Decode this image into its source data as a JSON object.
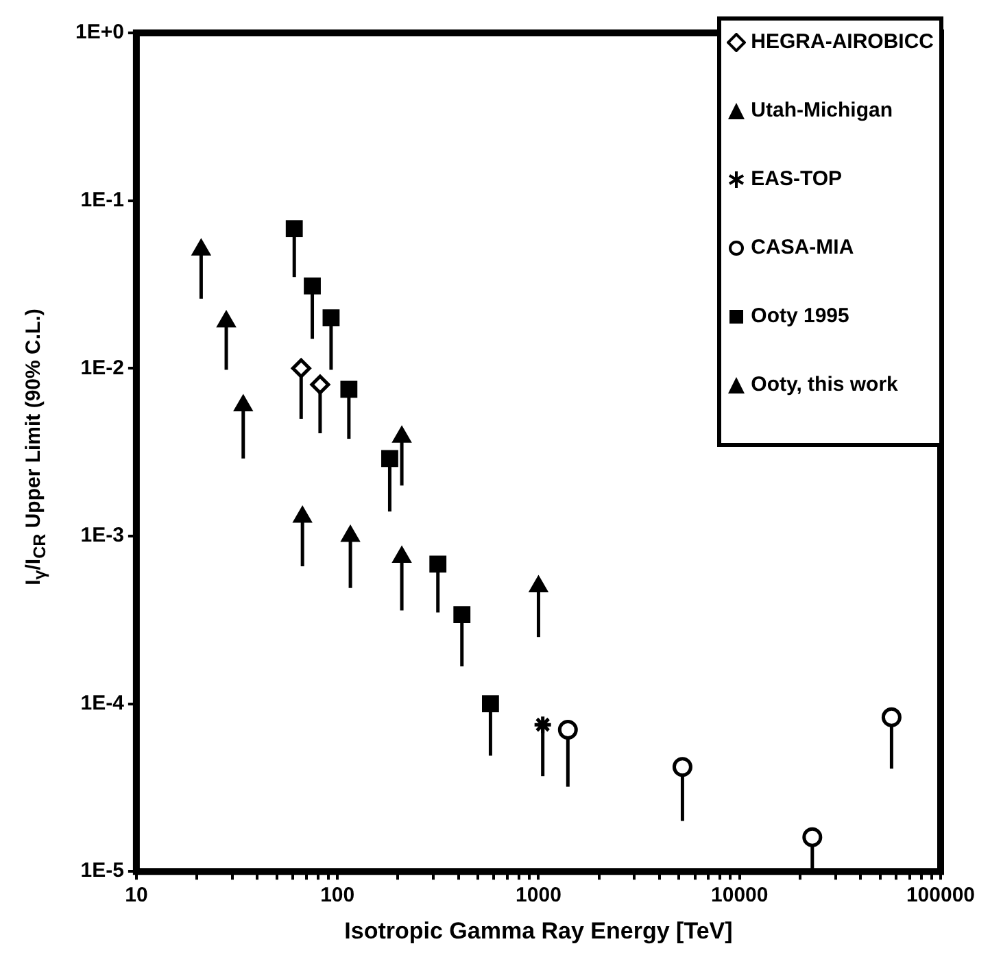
{
  "chart_data": {
    "type": "scatter",
    "xlabel": "Isotropic Gamma Ray Energy [TeV]",
    "ylabel": "I$_{γ}$/I$_{CR}$ Upper Limit (90% C.L.)",
    "log": "xy",
    "grid": false,
    "legend": "top right",
    "xlim": [
      10,
      100000
    ],
    "ylim": [
      1e-05,
      1
    ],
    "xticks": [
      10,
      {
        "value": 20,
        "label": null
      },
      {
        "value": 30,
        "label": null
      },
      {
        "value": 40,
        "label": null
      },
      {
        "value": 50,
        "label": null
      },
      {
        "value": 60,
        "label": null
      },
      {
        "value": 70,
        "label": null
      },
      {
        "value": 80,
        "label": null
      },
      {
        "value": 90,
        "label": null
      },
      100,
      {
        "value": 200,
        "label": null
      },
      {
        "value": 300,
        "label": null
      },
      {
        "value": 400,
        "label": null
      },
      {
        "value": 500,
        "label": null
      },
      {
        "value": 600,
        "label": null
      },
      {
        "value": 700,
        "label": null
      },
      {
        "value": 800,
        "label": null
      },
      {
        "value": 900,
        "label": null
      },
      1000,
      {
        "value": 2000,
        "label": null
      },
      {
        "value": 3000,
        "label": null
      },
      {
        "value": 4000,
        "label": null
      },
      {
        "value": 5000,
        "label": null
      },
      {
        "value": 6000,
        "label": null
      },
      {
        "value": 7000,
        "label": null
      },
      {
        "value": 8000,
        "label": null
      },
      {
        "value": 9000,
        "label": null
      },
      10000,
      {
        "value": 20000,
        "label": null
      },
      {
        "value": 30000,
        "label": null
      },
      {
        "value": 40000,
        "label": null
      },
      {
        "value": 50000,
        "label": null
      },
      {
        "value": 60000,
        "label": null
      },
      {
        "value": 70000,
        "label": null
      },
      {
        "value": 80000,
        "label": null
      },
      {
        "value": 90000,
        "label": null
      },
      100000
    ],
    "yticks": [
      {
        "value": 1e-05,
        "label": "1E-5"
      },
      {
        "value": 0.0001,
        "label": "1E-4"
      },
      {
        "value": 0.001,
        "label": "1E-3"
      },
      {
        "value": 0.01,
        "label": "1E-2"
      },
      {
        "value": 0.1,
        "label": "1E-1"
      },
      {
        "value": 1,
        "label": "1E+0"
      }
    ],
    "series": [
      {
        "name": "HEGRA-AIROBICC",
        "color": "#000000",
        "marker": "diamond",
        "x": [
          66,
          82
        ],
        "values": [
          0.01,
          0.008
        ],
        "errors": [
          [
            0.005,
            0.01
          ],
          [
            0.0041,
            0.008
          ]
        ]
      },
      {
        "name": "Utah-Michigan",
        "color": "#000000",
        "marker": "triangle",
        "x": [
          209,
          1000
        ],
        "values": [
          0.0039,
          0.0005
        ],
        "errors": [
          [
            0.002,
            0.0039
          ],
          [
            0.00025,
            0.0005
          ]
        ]
      },
      {
        "name": "EAS-TOP",
        "color": "#000000",
        "marker": "cross",
        "x": [
          1050
        ],
        "values": [
          7.5e-05
        ],
        "errors": [
          [
            3.7e-05,
            7.5e-05
          ]
        ]
      },
      {
        "name": "CASA-MIA",
        "color": "#000000",
        "marker": "circle",
        "x": [
          1400,
          5200,
          23000,
          57000
        ],
        "values": [
          7e-05,
          4.2e-05,
          1.6e-05,
          8.3e-05
        ],
        "errors": [
          [
            3.2e-05,
            7e-05
          ],
          [
            2e-05,
            4.2e-05
          ],
          [
            1e-05,
            1.6e-05
          ],
          [
            4.1e-05,
            8.3e-05
          ]
        ]
      },
      {
        "name": "Ooty 1995",
        "color": "#000000",
        "marker": "square",
        "x": [
          61,
          75,
          93,
          114,
          182,
          316,
          416,
          577
        ],
        "values": [
          0.068,
          0.031,
          0.02,
          0.0075,
          0.0029,
          0.00068,
          0.00034,
          0.0001
        ],
        "errors": [
          [
            0.035,
            0.068
          ],
          [
            0.015,
            0.031
          ],
          [
            0.0098,
            0.02
          ],
          [
            0.0038,
            0.0075
          ],
          [
            0.0014,
            0.0029
          ],
          [
            0.00035,
            0.00068
          ],
          [
            0.000167,
            0.00034
          ],
          [
            4.9e-05,
            0.0001
          ]
        ]
      },
      {
        "name": "Ooty, this work",
        "color": "#000000",
        "marker": "triangle",
        "x": [
          21,
          28,
          34,
          67,
          116,
          209
        ],
        "values": [
          0.051,
          0.019,
          0.006,
          0.0013,
          0.001,
          0.00075
        ],
        "errors": [
          [
            0.026,
            0.051
          ],
          [
            0.0098,
            0.019
          ],
          [
            0.0029,
            0.006
          ],
          [
            0.00066,
            0.0013
          ],
          [
            0.00049,
            0.001
          ],
          [
            0.00036,
            0.00075
          ]
        ]
      }
    ]
  }
}
